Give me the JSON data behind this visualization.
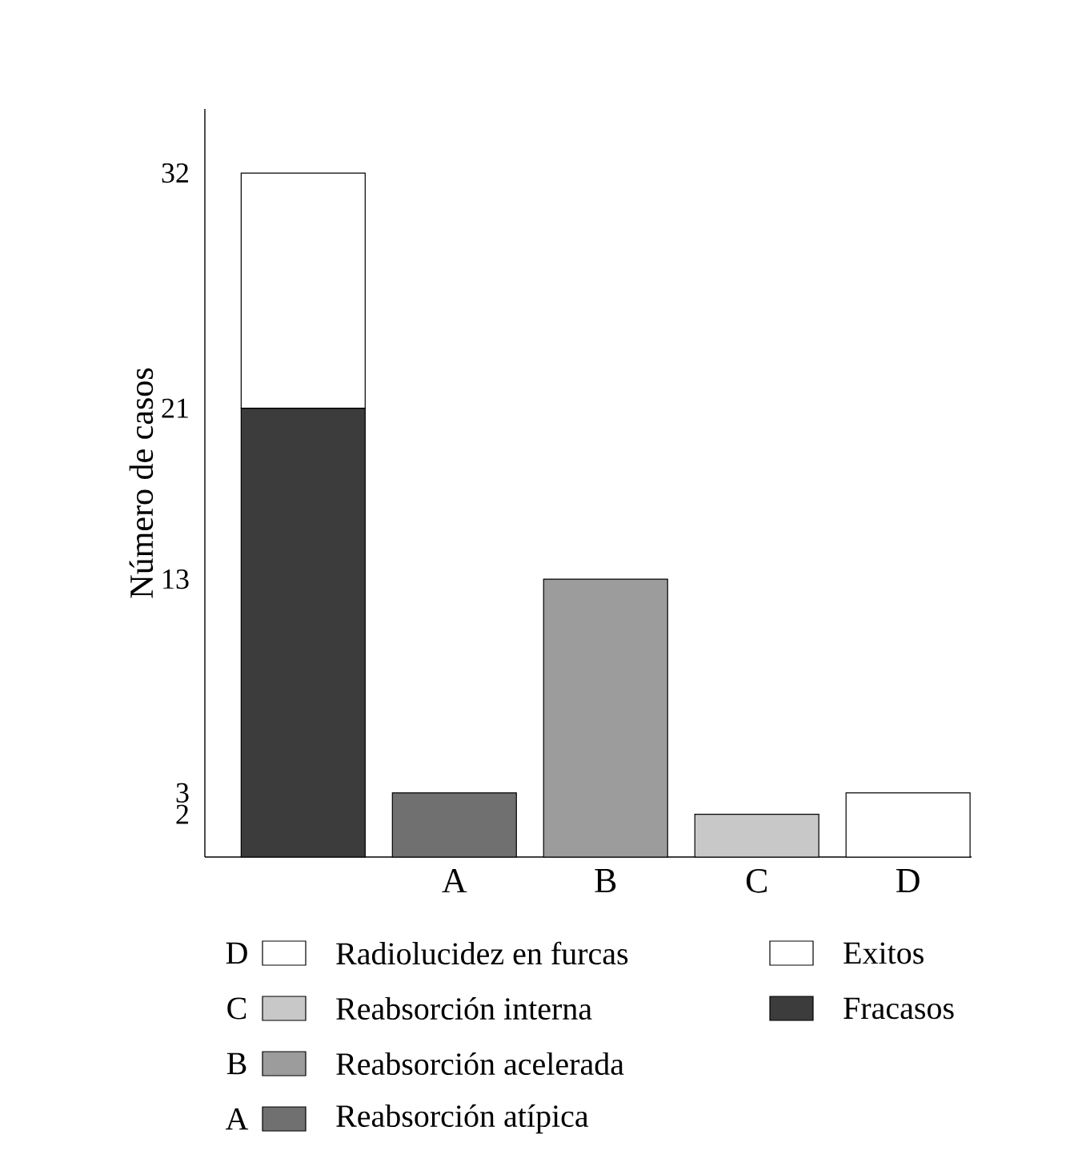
{
  "chart_data": {
    "type": "bar",
    "stacked": true,
    "ylabel": "Número de casos",
    "categories": [
      null,
      "A",
      "B",
      "C",
      "D"
    ],
    "ylim": [
      0,
      35
    ],
    "yticks": [
      2,
      3,
      13,
      21,
      32
    ],
    "legend": "bottom",
    "series": [
      {
        "name": "Fracasos",
        "color": "#3c3c3c",
        "values": [
          21,
          null,
          null,
          null,
          null
        ]
      },
      {
        "name": "Exitos",
        "color": "#ffffff",
        "values": [
          11,
          null,
          null,
          null,
          null
        ]
      },
      {
        "name": "Reabsorción atípica",
        "color": "#707070",
        "values": [
          null,
          3,
          null,
          null,
          null
        ]
      },
      {
        "name": "Reabsorción acelerada",
        "color": "#9c9c9c",
        "values": [
          null,
          null,
          13,
          null,
          null
        ]
      },
      {
        "name": "Reabsorción interna",
        "color": "#c8c8c8",
        "values": [
          null,
          null,
          null,
          2,
          null
        ]
      },
      {
        "name": "Radiolucidez en furcas",
        "color": "#ffffff",
        "values": [
          null,
          null,
          null,
          null,
          3
        ]
      }
    ]
  }
}
